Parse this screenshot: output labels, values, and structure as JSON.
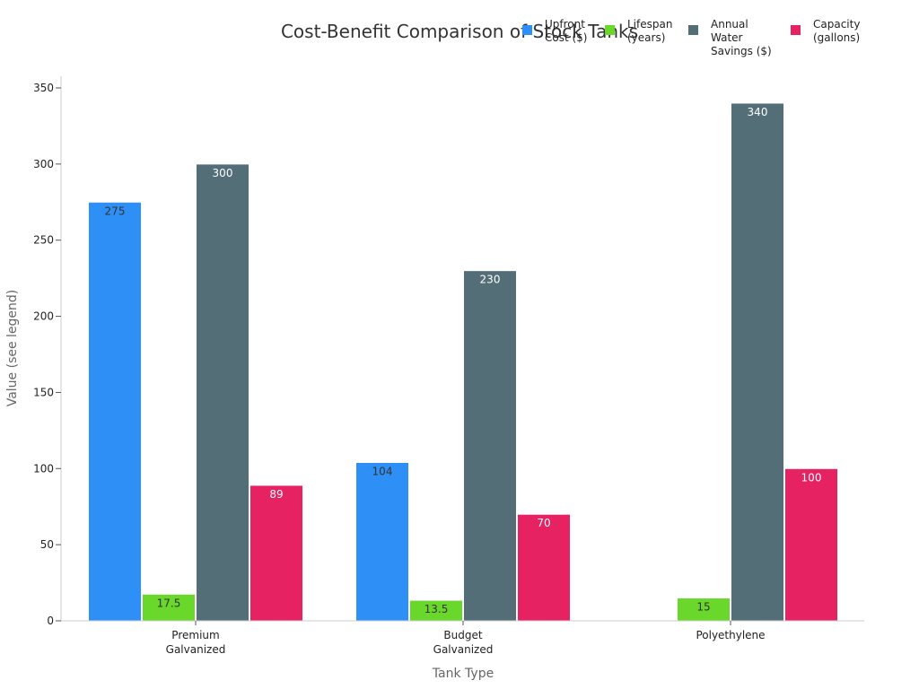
{
  "chart_data": {
    "type": "bar",
    "title": "Cost-Benefit Comparison of Stock Tanks",
    "xlabel": "Tank Type",
    "ylabel": "Value (see legend)",
    "categories": [
      [
        "Premium",
        "Galvanized"
      ],
      [
        "Budget",
        "Galvanized"
      ],
      [
        "Polyethylene"
      ]
    ],
    "ylim": [
      0,
      350
    ],
    "yticks": [
      0,
      50,
      100,
      150,
      200,
      250,
      300,
      350
    ],
    "grid": false,
    "legend_position": "top-right",
    "series": [
      {
        "name": "Upfront Cost ($)",
        "legend_lines": [
          "Upfront",
          "Cost ($)"
        ],
        "color": "#2e8ff6",
        "label_color": "#333333",
        "values": [
          275,
          104,
          null
        ]
      },
      {
        "name": "Lifespan (years)",
        "legend_lines": [
          "Lifespan",
          "(years)"
        ],
        "color": "#69d82a",
        "label_color": "#333333",
        "values": [
          17.5,
          13.5,
          15
        ]
      },
      {
        "name": "Annual Water Savings ($)",
        "legend_lines": [
          "Annual",
          "Water",
          "Savings ($)"
        ],
        "color": "#546e78",
        "label_color": "#ffffff",
        "values": [
          300,
          230,
          340
        ]
      },
      {
        "name": "Capacity (gallons)",
        "legend_lines": [
          "Capacity",
          "(gallons)"
        ],
        "color": "#e72262",
        "label_color": "#ffffff",
        "values": [
          89,
          70,
          100
        ]
      }
    ]
  }
}
